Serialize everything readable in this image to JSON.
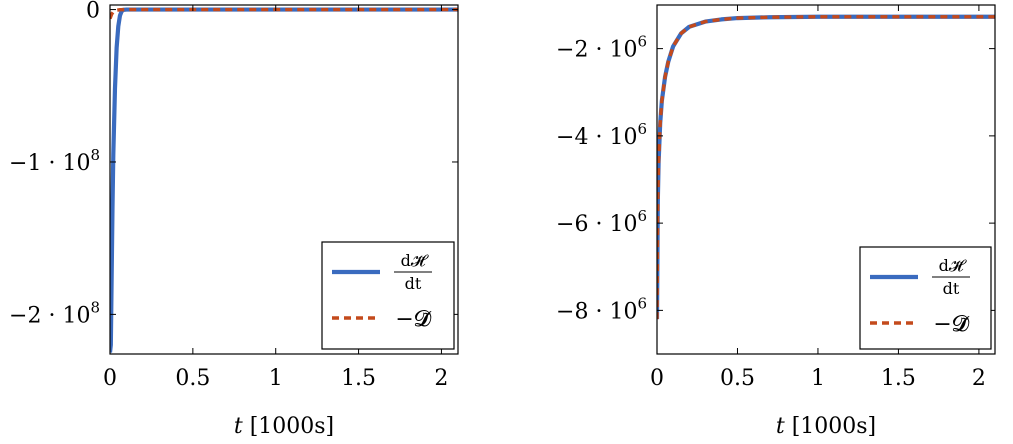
{
  "colors": {
    "series_solid": "#3a6bbf",
    "series_dashed": "#c44a1c"
  },
  "chart_data": [
    {
      "type": "line",
      "xlim": [
        0,
        2.1
      ],
      "ylim": [
        -226000000,
        3000000
      ],
      "x_ticks": [
        0,
        0.5,
        1,
        1.5,
        2
      ],
      "x_tick_labels": [
        "0",
        "0.5",
        "1",
        "1.5",
        "2"
      ],
      "y_ticks": [
        0,
        -100000000,
        -200000000
      ],
      "y_tick_labels": [
        {
          "mantissa": "0",
          "exp": ""
        },
        {
          "mantissa": "−1 · 10",
          "exp": "8"
        },
        {
          "mantissa": "−2 · 10",
          "exp": "8"
        }
      ],
      "xlabel": {
        "var": "t",
        "unit": " [1000s]"
      },
      "ylabel": "",
      "grid": false,
      "legend_position": "bottom-right",
      "legend": [
        {
          "label_num": "d𝓗̃",
          "label_den": "dt",
          "style": "solid"
        },
        {
          "label": "−𝓓̃",
          "style": "dashed"
        }
      ],
      "series": [
        {
          "style": "solid",
          "x": [
            0.0,
            0.005,
            0.01,
            0.015,
            0.02,
            0.03,
            0.04,
            0.05,
            0.06,
            0.07,
            0.08,
            0.1,
            0.5,
            1.0,
            1.5,
            2.1
          ],
          "y": [
            -225000000,
            -220000000,
            -175000000,
            -130000000,
            -95000000,
            -52000000,
            -25000000,
            -11000000,
            -4000000,
            -1200000,
            -200000,
            0,
            0,
            0,
            0,
            0
          ]
        },
        {
          "style": "dashed",
          "x": [
            0.0,
            0.005,
            0.01,
            0.02,
            0.04,
            0.06,
            0.1,
            0.5,
            1.0,
            1.5,
            2.1
          ],
          "y": [
            -6000000,
            -4500000,
            -3000000,
            -1500000,
            -500000,
            -100000,
            0,
            0,
            0,
            0,
            0
          ]
        }
      ]
    },
    {
      "type": "line",
      "xlim": [
        0,
        2.1
      ],
      "ylim": [
        -9000000,
        -1000000
      ],
      "x_ticks": [
        0,
        0.5,
        1,
        1.5,
        2
      ],
      "x_tick_labels": [
        "0",
        "0.5",
        "1",
        "1.5",
        "2"
      ],
      "y_ticks": [
        -2000000,
        -4000000,
        -6000000,
        -8000000
      ],
      "y_tick_labels": [
        {
          "mantissa": "−2 · 10",
          "exp": "6"
        },
        {
          "mantissa": "−4 · 10",
          "exp": "6"
        },
        {
          "mantissa": "−6 · 10",
          "exp": "6"
        },
        {
          "mantissa": "−8 · 10",
          "exp": "6"
        }
      ],
      "xlabel": {
        "var": "t",
        "unit": " [1000s]"
      },
      "ylabel": "",
      "grid": false,
      "legend_position": "bottom-right",
      "legend": [
        {
          "label_num": "d𝓗̃",
          "label_den": "dt",
          "style": "solid"
        },
        {
          "label": "−𝓓̃",
          "style": "dashed"
        }
      ],
      "series": [
        {
          "style": "solid",
          "x": [
            0.0,
            0.005,
            0.01,
            0.02,
            0.03,
            0.05,
            0.07,
            0.1,
            0.15,
            0.2,
            0.3,
            0.4,
            0.5,
            0.7,
            1.0,
            1.5,
            2.1
          ],
          "y": [
            -8200000,
            -5500000,
            -4600000,
            -3700000,
            -3200000,
            -2650000,
            -2300000,
            -1950000,
            -1650000,
            -1500000,
            -1380000,
            -1330000,
            -1300000,
            -1280000,
            -1270000,
            -1270000,
            -1270000
          ]
        },
        {
          "style": "dashed",
          "x": [
            0.0,
            0.005,
            0.01,
            0.02,
            0.03,
            0.05,
            0.07,
            0.1,
            0.15,
            0.2,
            0.3,
            0.4,
            0.5,
            0.7,
            1.0,
            1.5,
            2.1
          ],
          "y": [
            -8200000,
            -5500000,
            -4600000,
            -3700000,
            -3200000,
            -2650000,
            -2300000,
            -1950000,
            -1650000,
            -1500000,
            -1380000,
            -1330000,
            -1300000,
            -1280000,
            -1270000,
            -1270000,
            -1270000
          ]
        }
      ]
    }
  ]
}
